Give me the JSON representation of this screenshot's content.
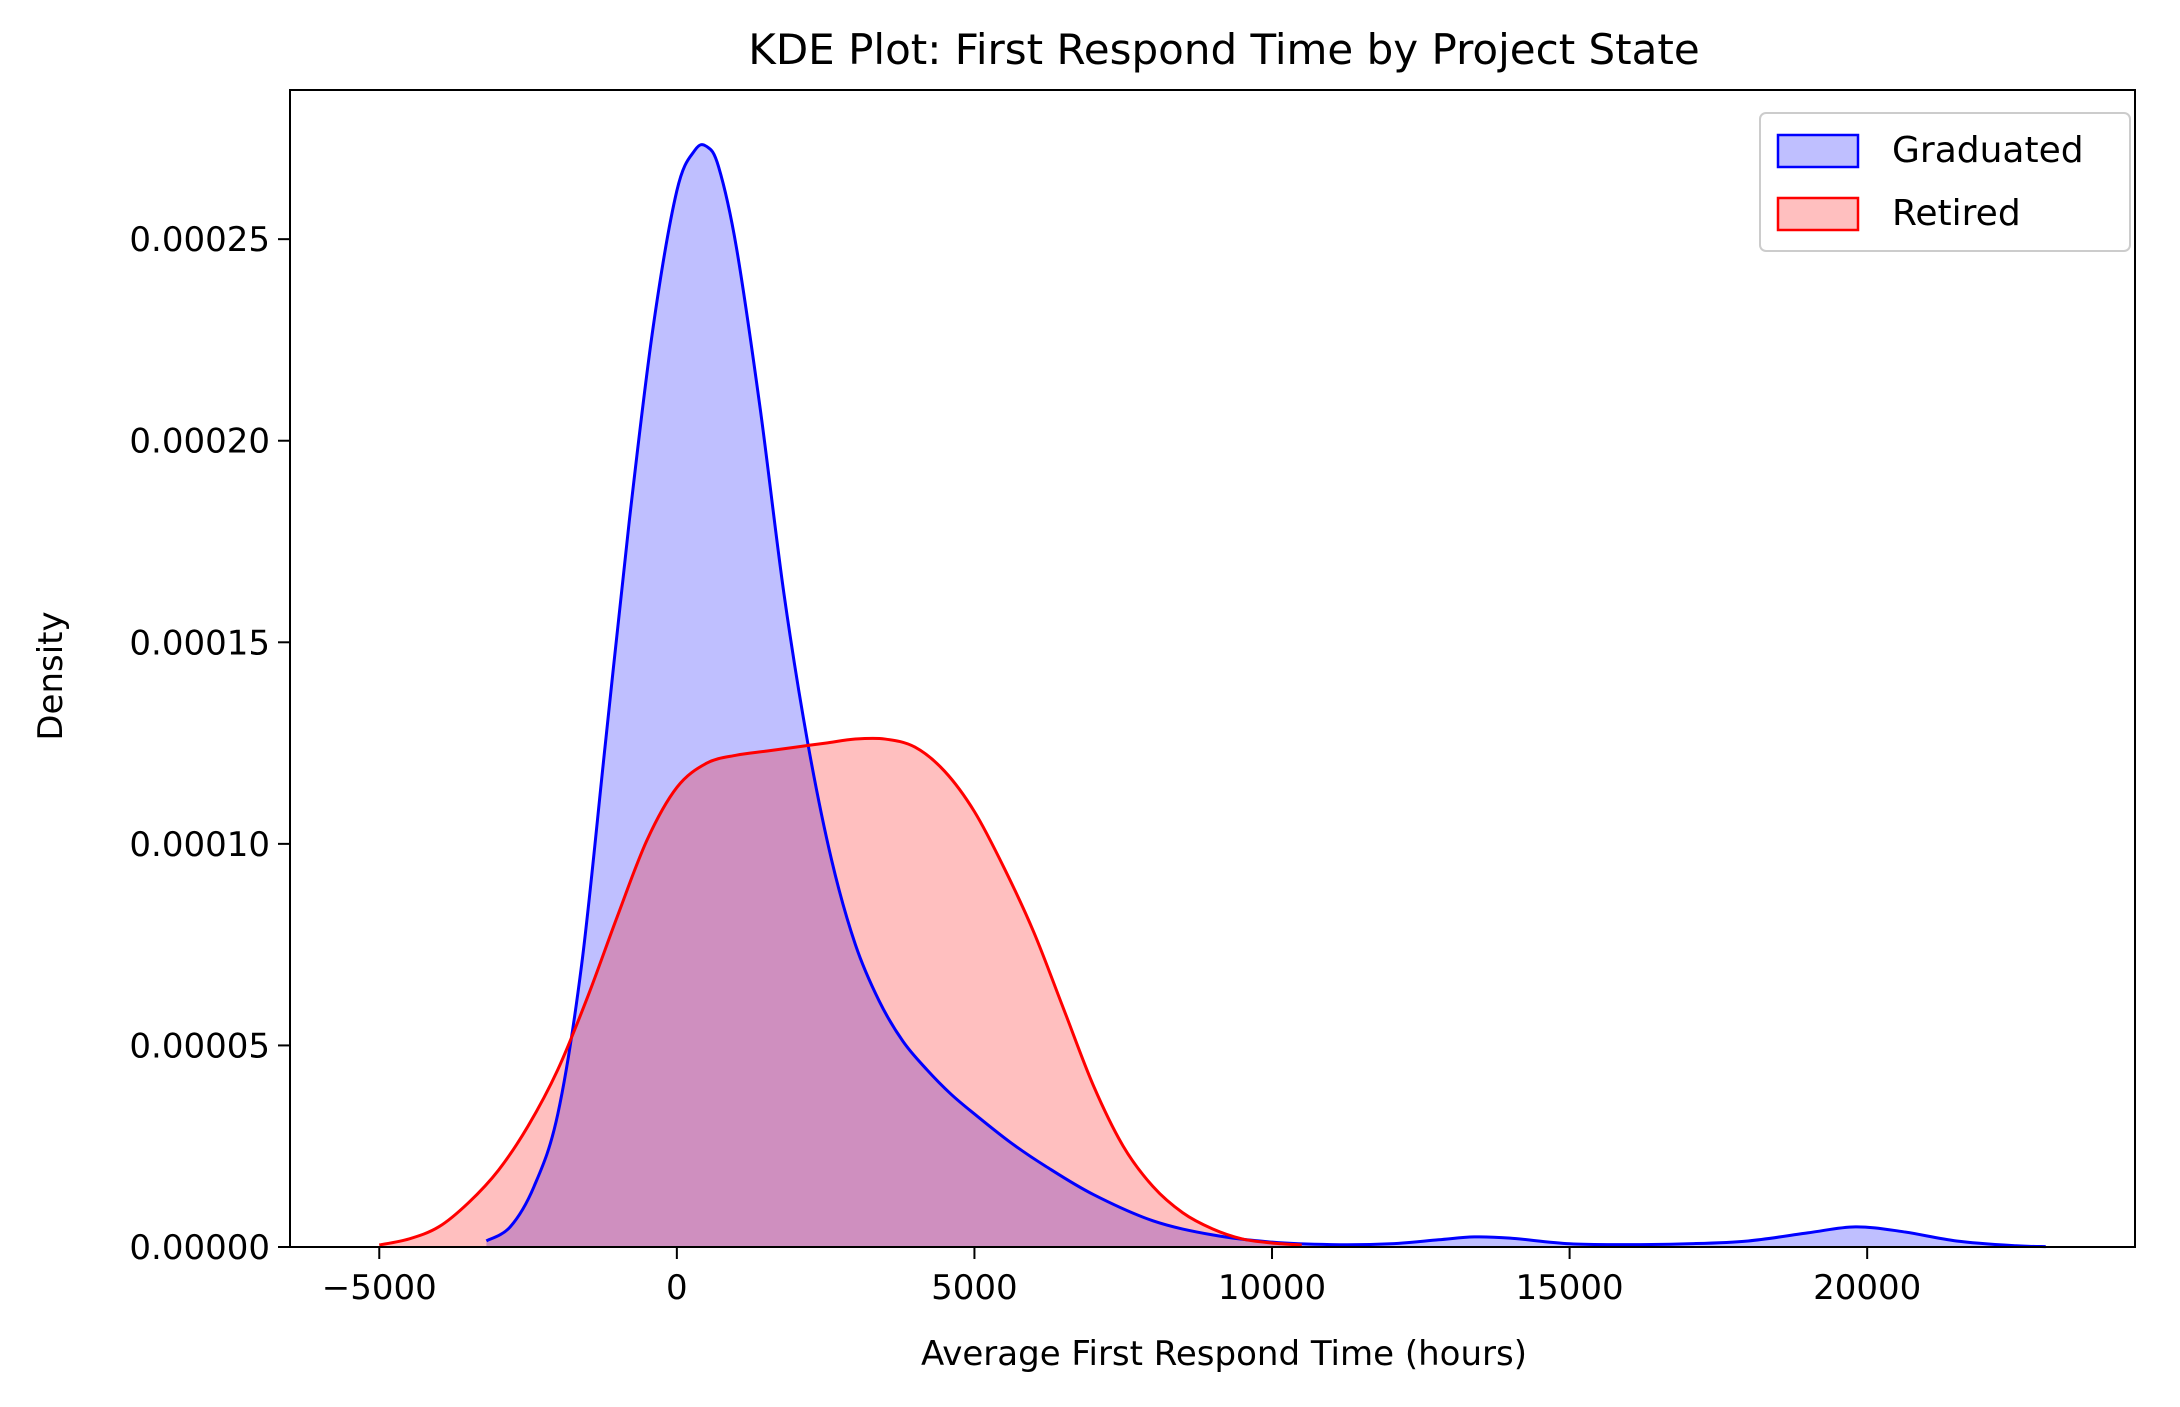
{
  "chart_data": {
    "type": "area",
    "title": "KDE Plot: First Respond Time by Project State",
    "xlabel": "Average First Respond Time (hours)",
    "ylabel": "Density",
    "xlim": [
      -6500,
      24500
    ],
    "ylim": [
      0,
      0.000287
    ],
    "xticks": [
      -5000,
      0,
      5000,
      10000,
      15000,
      20000
    ],
    "xtick_labels": [
      "−5000",
      "0",
      "5000",
      "10000",
      "15000",
      "20000"
    ],
    "yticks": [
      0,
      5e-05,
      0.0001,
      0.00015,
      0.0002,
      0.00025
    ],
    "ytick_labels": [
      "0.00000",
      "0.00005",
      "0.00010",
      "0.00015",
      "0.00020",
      "0.00025"
    ],
    "grid": false,
    "legend_position": "top-right",
    "series": [
      {
        "name": "Graduated",
        "color": "#0000ff",
        "fill_color": "#0000ff",
        "fill_opacity": 0.25,
        "x": [
          -3200,
          -2800,
          -2400,
          -2000,
          -1600,
          -1200,
          -800,
          -400,
          0,
          300,
          500,
          700,
          1000,
          1400,
          1800,
          2200,
          2600,
          3000,
          3400,
          3800,
          4200,
          4600,
          5000,
          5600,
          6200,
          7000,
          8000,
          9000,
          10000,
          11000,
          12000,
          12800,
          13400,
          14000,
          15000,
          16000,
          17000,
          18000,
          19000,
          19800,
          20600,
          21500,
          22500,
          23000
        ],
        "y": [
          1.5e-06,
          5e-06,
          1.5e-05,
          3.3e-05,
          7e-05,
          0.000125,
          0.00018,
          0.000228,
          0.000262,
          0.000272,
          0.000273,
          0.000268,
          0.000248,
          0.000208,
          0.000162,
          0.000125,
          9.6e-05,
          7.5e-05,
          6.1e-05,
          5.1e-05,
          4.4e-05,
          3.8e-05,
          3.3e-05,
          2.6e-05,
          2e-05,
          1.3e-05,
          6.5e-06,
          3e-06,
          1.2e-06,
          6e-07,
          8e-07,
          1.8e-06,
          2.5e-06,
          2.2e-06,
          8e-07,
          6e-07,
          8e-07,
          1.5e-06,
          3.5e-06,
          5e-06,
          3.8e-06,
          1.5e-06,
          3e-07,
          1e-07
        ]
      },
      {
        "name": "Retired",
        "color": "#ff0000",
        "fill_color": "#ff0000",
        "fill_opacity": 0.25,
        "x": [
          -5000,
          -4500,
          -4000,
          -3500,
          -3000,
          -2500,
          -2000,
          -1500,
          -1000,
          -500,
          0,
          500,
          1000,
          1500,
          2000,
          2500,
          3000,
          3500,
          4000,
          4500,
          5000,
          5500,
          6000,
          6500,
          7000,
          7500,
          8000,
          8500,
          9000,
          9500,
          10000,
          10500
        ],
        "y": [
          5e-07,
          2e-06,
          5e-06,
          1.1e-05,
          1.9e-05,
          3e-05,
          4.4e-05,
          6.2e-05,
          8.2e-05,
          0.000101,
          0.000114,
          0.00012,
          0.000122,
          0.000123,
          0.000124,
          0.000125,
          0.000126,
          0.000126,
          0.000124,
          0.000118,
          0.000108,
          9.4e-05,
          7.8e-05,
          5.9e-05,
          4e-05,
          2.5e-05,
          1.5e-05,
          8.5e-06,
          4.5e-06,
          2e-06,
          1e-06,
          5e-07
        ]
      }
    ]
  }
}
